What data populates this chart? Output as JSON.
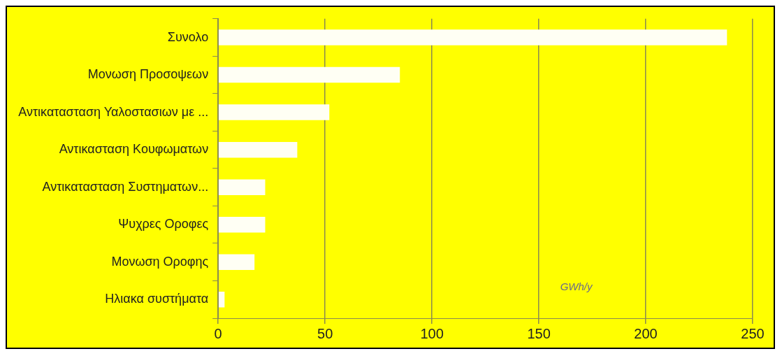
{
  "chart_data": {
    "type": "bar",
    "orientation": "horizontal",
    "categories": [
      "Συνολο",
      "Μονωση Προσοψεων",
      "Αντικατασταση Υαλοστασιων με ...",
      "Αντικασταση Κουφωματων",
      "Αντικατασταση Συστηματων...",
      "Ψυχρες Οροφες",
      "Μονωση Οροφης",
      "Ηλιακα συστήματα"
    ],
    "values": [
      238,
      85,
      52,
      37,
      22,
      22,
      17,
      3
    ],
    "color": "#fffff4",
    "xlim": [
      0,
      250
    ],
    "xticks": [
      0,
      50,
      100,
      150,
      200,
      250
    ],
    "grid": "x",
    "legend": false,
    "annotations": [
      "GWh/y"
    ]
  }
}
